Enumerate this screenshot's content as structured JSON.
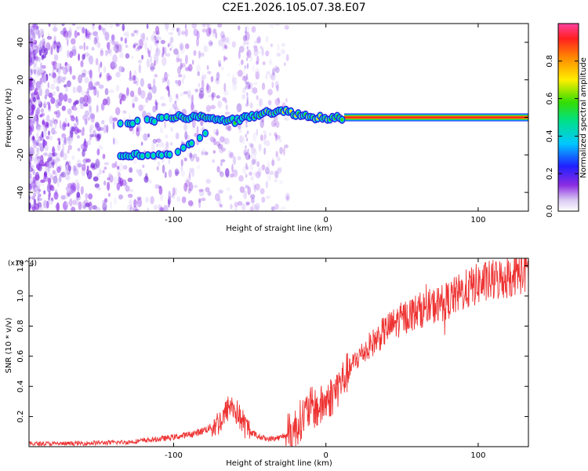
{
  "title": "C2E1.2026.105.07.38.E07",
  "chart_data": [
    {
      "type": "heatmap",
      "title": "C2E1.2026.105.07.38.E07",
      "xlabel": "Height of straight line (km)",
      "ylabel": "Frequency (Hz)",
      "xlim": [
        -195,
        133
      ],
      "ylim": [
        -50,
        50
      ],
      "xticks": [
        -100,
        0,
        100
      ],
      "yticks": [
        -40,
        -20,
        0,
        20,
        40
      ],
      "colorbar": {
        "label": "Normalized spectral amplitude",
        "range": [
          0,
          1
        ],
        "ticks": [
          0.0,
          0.2,
          0.4,
          0.6,
          0.8
        ]
      },
      "features": [
        {
          "name": "main-branch",
          "points": [
            [
              -135,
              -3
            ],
            [
              -120,
              -2
            ],
            [
              -100,
              0
            ],
            [
              -80,
              0
            ],
            [
              -60,
              -2
            ],
            [
              -40,
              3
            ],
            [
              -25,
              3
            ],
            [
              -10,
              0
            ],
            [
              0,
              0
            ],
            [
              10,
              0
            ],
            [
              133,
              0
            ]
          ]
        },
        {
          "name": "lower-branch",
          "points": [
            [
              -135,
              -20
            ],
            [
              -120,
              -20
            ],
            [
              -105,
              -20
            ],
            [
              -95,
              -18
            ],
            [
              -85,
              -12
            ],
            [
              -78,
              -8
            ]
          ]
        }
      ]
    },
    {
      "type": "line",
      "xlabel": "Height of straight line (km)",
      "ylabel": "SNR (10 * v/v)",
      "scale_label": "(x10^4)",
      "xlim": [
        -195,
        133
      ],
      "ylim": [
        0,
        1.25
      ],
      "xticks": [
        -100,
        0,
        100
      ],
      "yticks": [
        0.2,
        0.4,
        0.6,
        0.8,
        1.0,
        1.2
      ],
      "color": "#ee3333",
      "x": [
        -195,
        -170,
        -150,
        -130,
        -110,
        -95,
        -85,
        -75,
        -68,
        -63,
        -58,
        -52,
        -45,
        -38,
        -30,
        -22,
        -15,
        -10,
        -5,
        0,
        5,
        10,
        20,
        30,
        40,
        50,
        60,
        70,
        80,
        90,
        100,
        110,
        120,
        133
      ],
      "y": [
        0.02,
        0.02,
        0.025,
        0.03,
        0.05,
        0.07,
        0.09,
        0.13,
        0.18,
        0.28,
        0.22,
        0.12,
        0.07,
        0.05,
        0.06,
        0.1,
        0.2,
        0.26,
        0.25,
        0.3,
        0.35,
        0.43,
        0.58,
        0.68,
        0.78,
        0.85,
        0.9,
        0.93,
        0.97,
        1.03,
        1.08,
        1.1,
        1.13,
        1.17
      ]
    }
  ]
}
